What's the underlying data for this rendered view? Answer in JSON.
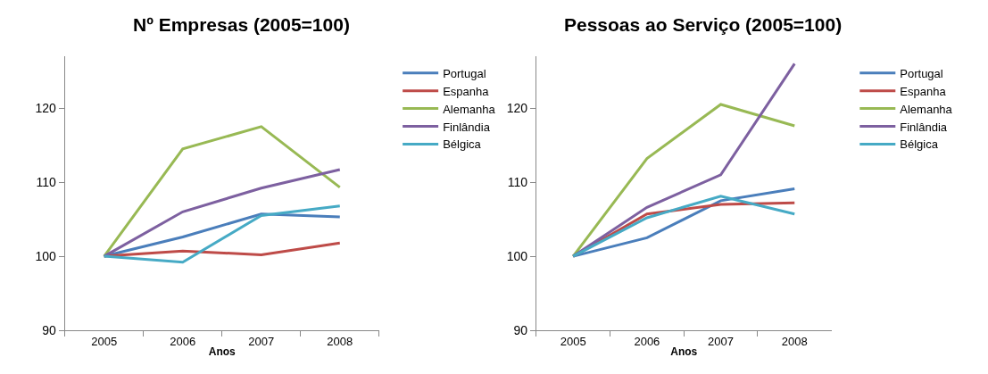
{
  "chart_data": [
    {
      "type": "line",
      "title": "Nº Empresas (2005=100)",
      "xlabel": "Anos",
      "categories": [
        "2005",
        "2006",
        "2007",
        "2008"
      ],
      "ylim": [
        90,
        127
      ],
      "yticks": [
        90,
        100,
        110,
        120
      ],
      "legend": "right",
      "marker": "none",
      "line_style": "solid",
      "series": [
        {
          "name": "Portugal",
          "color": "#4a7ebb",
          "values": [
            100,
            102.6,
            105.7,
            105.3
          ]
        },
        {
          "name": "Espanha",
          "color": "#be4b48",
          "values": [
            100,
            100.7,
            100.2,
            101.8
          ]
        },
        {
          "name": "Alemanha",
          "color": "#98b954",
          "values": [
            100,
            114.5,
            117.5,
            109.3
          ]
        },
        {
          "name": "Finlândia",
          "color": "#7d60a0",
          "values": [
            100,
            106.0,
            109.2,
            111.7
          ]
        },
        {
          "name": "Bélgica",
          "color": "#46aac5",
          "values": [
            100,
            99.2,
            105.5,
            106.8
          ]
        }
      ]
    },
    {
      "type": "line",
      "title": "Pessoas ao Serviço (2005=100)",
      "xlabel": "Anos",
      "categories": [
        "2005",
        "2006",
        "2007",
        "2008"
      ],
      "ylim": [
        90,
        127
      ],
      "yticks": [
        90,
        100,
        110,
        120
      ],
      "legend": "right",
      "marker": "none",
      "line_style": "solid",
      "series": [
        {
          "name": "Portugal",
          "color": "#4a7ebb",
          "values": [
            100,
            102.5,
            107.5,
            109.1
          ]
        },
        {
          "name": "Espanha",
          "color": "#be4b48",
          "values": [
            100,
            105.7,
            107.0,
            107.2
          ]
        },
        {
          "name": "Alemanha",
          "color": "#98b954",
          "values": [
            100,
            113.2,
            120.5,
            117.6
          ]
        },
        {
          "name": "Finlândia",
          "color": "#7d60a0",
          "values": [
            100,
            106.6,
            111.0,
            126.0
          ]
        },
        {
          "name": "Bélgica",
          "color": "#46aac5",
          "values": [
            100,
            105.2,
            108.1,
            105.7
          ]
        }
      ]
    }
  ]
}
